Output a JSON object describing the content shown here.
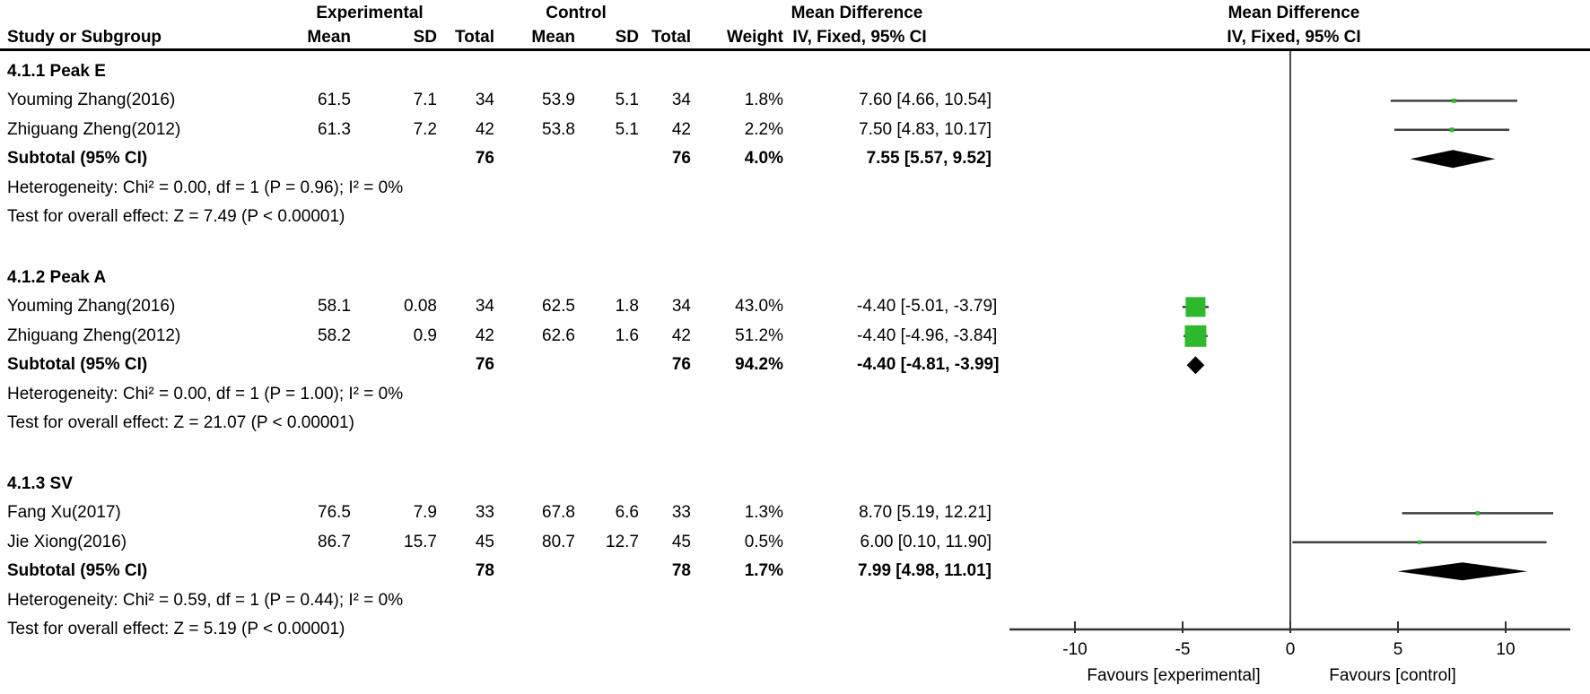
{
  "header": {
    "group1": "Experimental",
    "group2": "Control",
    "effect_left": "Mean Difference",
    "method_left": "IV, Fixed, 95% CI",
    "effect_right": "Mean Difference",
    "method_right": "IV, Fixed, 95% CI",
    "study_col": "Study or Subgroup",
    "cols": [
      "Mean",
      "SD",
      "Total",
      "Mean",
      "SD",
      "Total",
      "Weight"
    ]
  },
  "chart_data": {
    "type": "forest",
    "effect_measure": "Mean Difference",
    "model": "IV, Fixed, 95% CI",
    "x_ticks": [
      -10,
      -5,
      0,
      5,
      10
    ],
    "xlim": [
      -13,
      13
    ],
    "favours_left": "Favours [experimental]",
    "favours_right": "Favours [control]",
    "marker_color": "#2eb82e",
    "diamond_color": "#000000",
    "line_color": "#404040",
    "subgroups": [
      {
        "label": "4.1.1 Peak E",
        "studies": [
          {
            "name": "Youming Zhang(2016)",
            "mean_e": "61.5",
            "sd_e": "7.1",
            "total_e": "34",
            "mean_c": "53.9",
            "sd_c": "5.1",
            "total_c": "34",
            "weight": "1.8%",
            "ci_text": "7.60 [4.66, 10.54]",
            "md": 7.6,
            "lo": 4.66,
            "hi": 10.54,
            "wpct": 1.8
          },
          {
            "name": "Zhiguang Zheng(2012)",
            "mean_e": "61.3",
            "sd_e": "7.2",
            "total_e": "42",
            "mean_c": "53.8",
            "sd_c": "5.1",
            "total_c": "42",
            "weight": "2.2%",
            "ci_text": "7.50 [4.83, 10.17]",
            "md": 7.5,
            "lo": 4.83,
            "hi": 10.17,
            "wpct": 2.2
          }
        ],
        "subtotal": {
          "label": "Subtotal (95% CI)",
          "total_e": "76",
          "total_c": "76",
          "weight": "4.0%",
          "ci_text": "7.55 [5.57, 9.52]",
          "md": 7.55,
          "lo": 5.57,
          "hi": 9.52
        },
        "heterogeneity": "Heterogeneity: Chi² = 0.00, df = 1 (P = 0.96); I² = 0%",
        "overall_effect": "Test for overall effect: Z = 7.49 (P < 0.00001)"
      },
      {
        "label": "4.1.2 Peak A",
        "studies": [
          {
            "name": "Youming Zhang(2016)",
            "mean_e": "58.1",
            "sd_e": "0.08",
            "total_e": "34",
            "mean_c": "62.5",
            "sd_c": "1.8",
            "total_c": "34",
            "weight": "43.0%",
            "ci_text": "-4.40 [-5.01, -3.79]",
            "md": -4.4,
            "lo": -5.01,
            "hi": -3.79,
            "wpct": 43.0
          },
          {
            "name": "Zhiguang Zheng(2012)",
            "mean_e": "58.2",
            "sd_e": "0.9",
            "total_e": "42",
            "mean_c": "62.6",
            "sd_c": "1.6",
            "total_c": "42",
            "weight": "51.2%",
            "ci_text": "-4.40 [-4.96, -3.84]",
            "md": -4.4,
            "lo": -4.96,
            "hi": -3.84,
            "wpct": 51.2
          }
        ],
        "subtotal": {
          "label": "Subtotal (95% CI)",
          "total_e": "76",
          "total_c": "76",
          "weight": "94.2%",
          "ci_text": "-4.40 [-4.81, -3.99]",
          "md": -4.4,
          "lo": -4.81,
          "hi": -3.99
        },
        "heterogeneity": "Heterogeneity: Chi² = 0.00, df = 1 (P = 1.00); I² = 0%",
        "overall_effect": "Test for overall effect: Z = 21.07 (P < 0.00001)"
      },
      {
        "label": "4.1.3 SV",
        "studies": [
          {
            "name": "Fang Xu(2017)",
            "mean_e": "76.5",
            "sd_e": "7.9",
            "total_e": "33",
            "mean_c": "67.8",
            "sd_c": "6.6",
            "total_c": "33",
            "weight": "1.3%",
            "ci_text": "8.70 [5.19, 12.21]",
            "md": 8.7,
            "lo": 5.19,
            "hi": 12.21,
            "wpct": 1.3
          },
          {
            "name": "Jie Xiong(2016)",
            "mean_e": "86.7",
            "sd_e": "15.7",
            "total_e": "45",
            "mean_c": "80.7",
            "sd_c": "12.7",
            "total_c": "45",
            "weight": "0.5%",
            "ci_text": "6.00 [0.10, 11.90]",
            "md": 6.0,
            "lo": 0.1,
            "hi": 11.9,
            "wpct": 0.5
          }
        ],
        "subtotal": {
          "label": "Subtotal (95% CI)",
          "total_e": "78",
          "total_c": "78",
          "weight": "1.7%",
          "ci_text": "7.99 [4.98, 11.01]",
          "md": 7.99,
          "lo": 4.98,
          "hi": 11.01
        },
        "heterogeneity": "Heterogeneity: Chi² = 0.59, df = 1 (P = 0.44); I² = 0%",
        "overall_effect": "Test for overall effect: Z = 5.19 (P < 0.00001)"
      }
    ]
  }
}
